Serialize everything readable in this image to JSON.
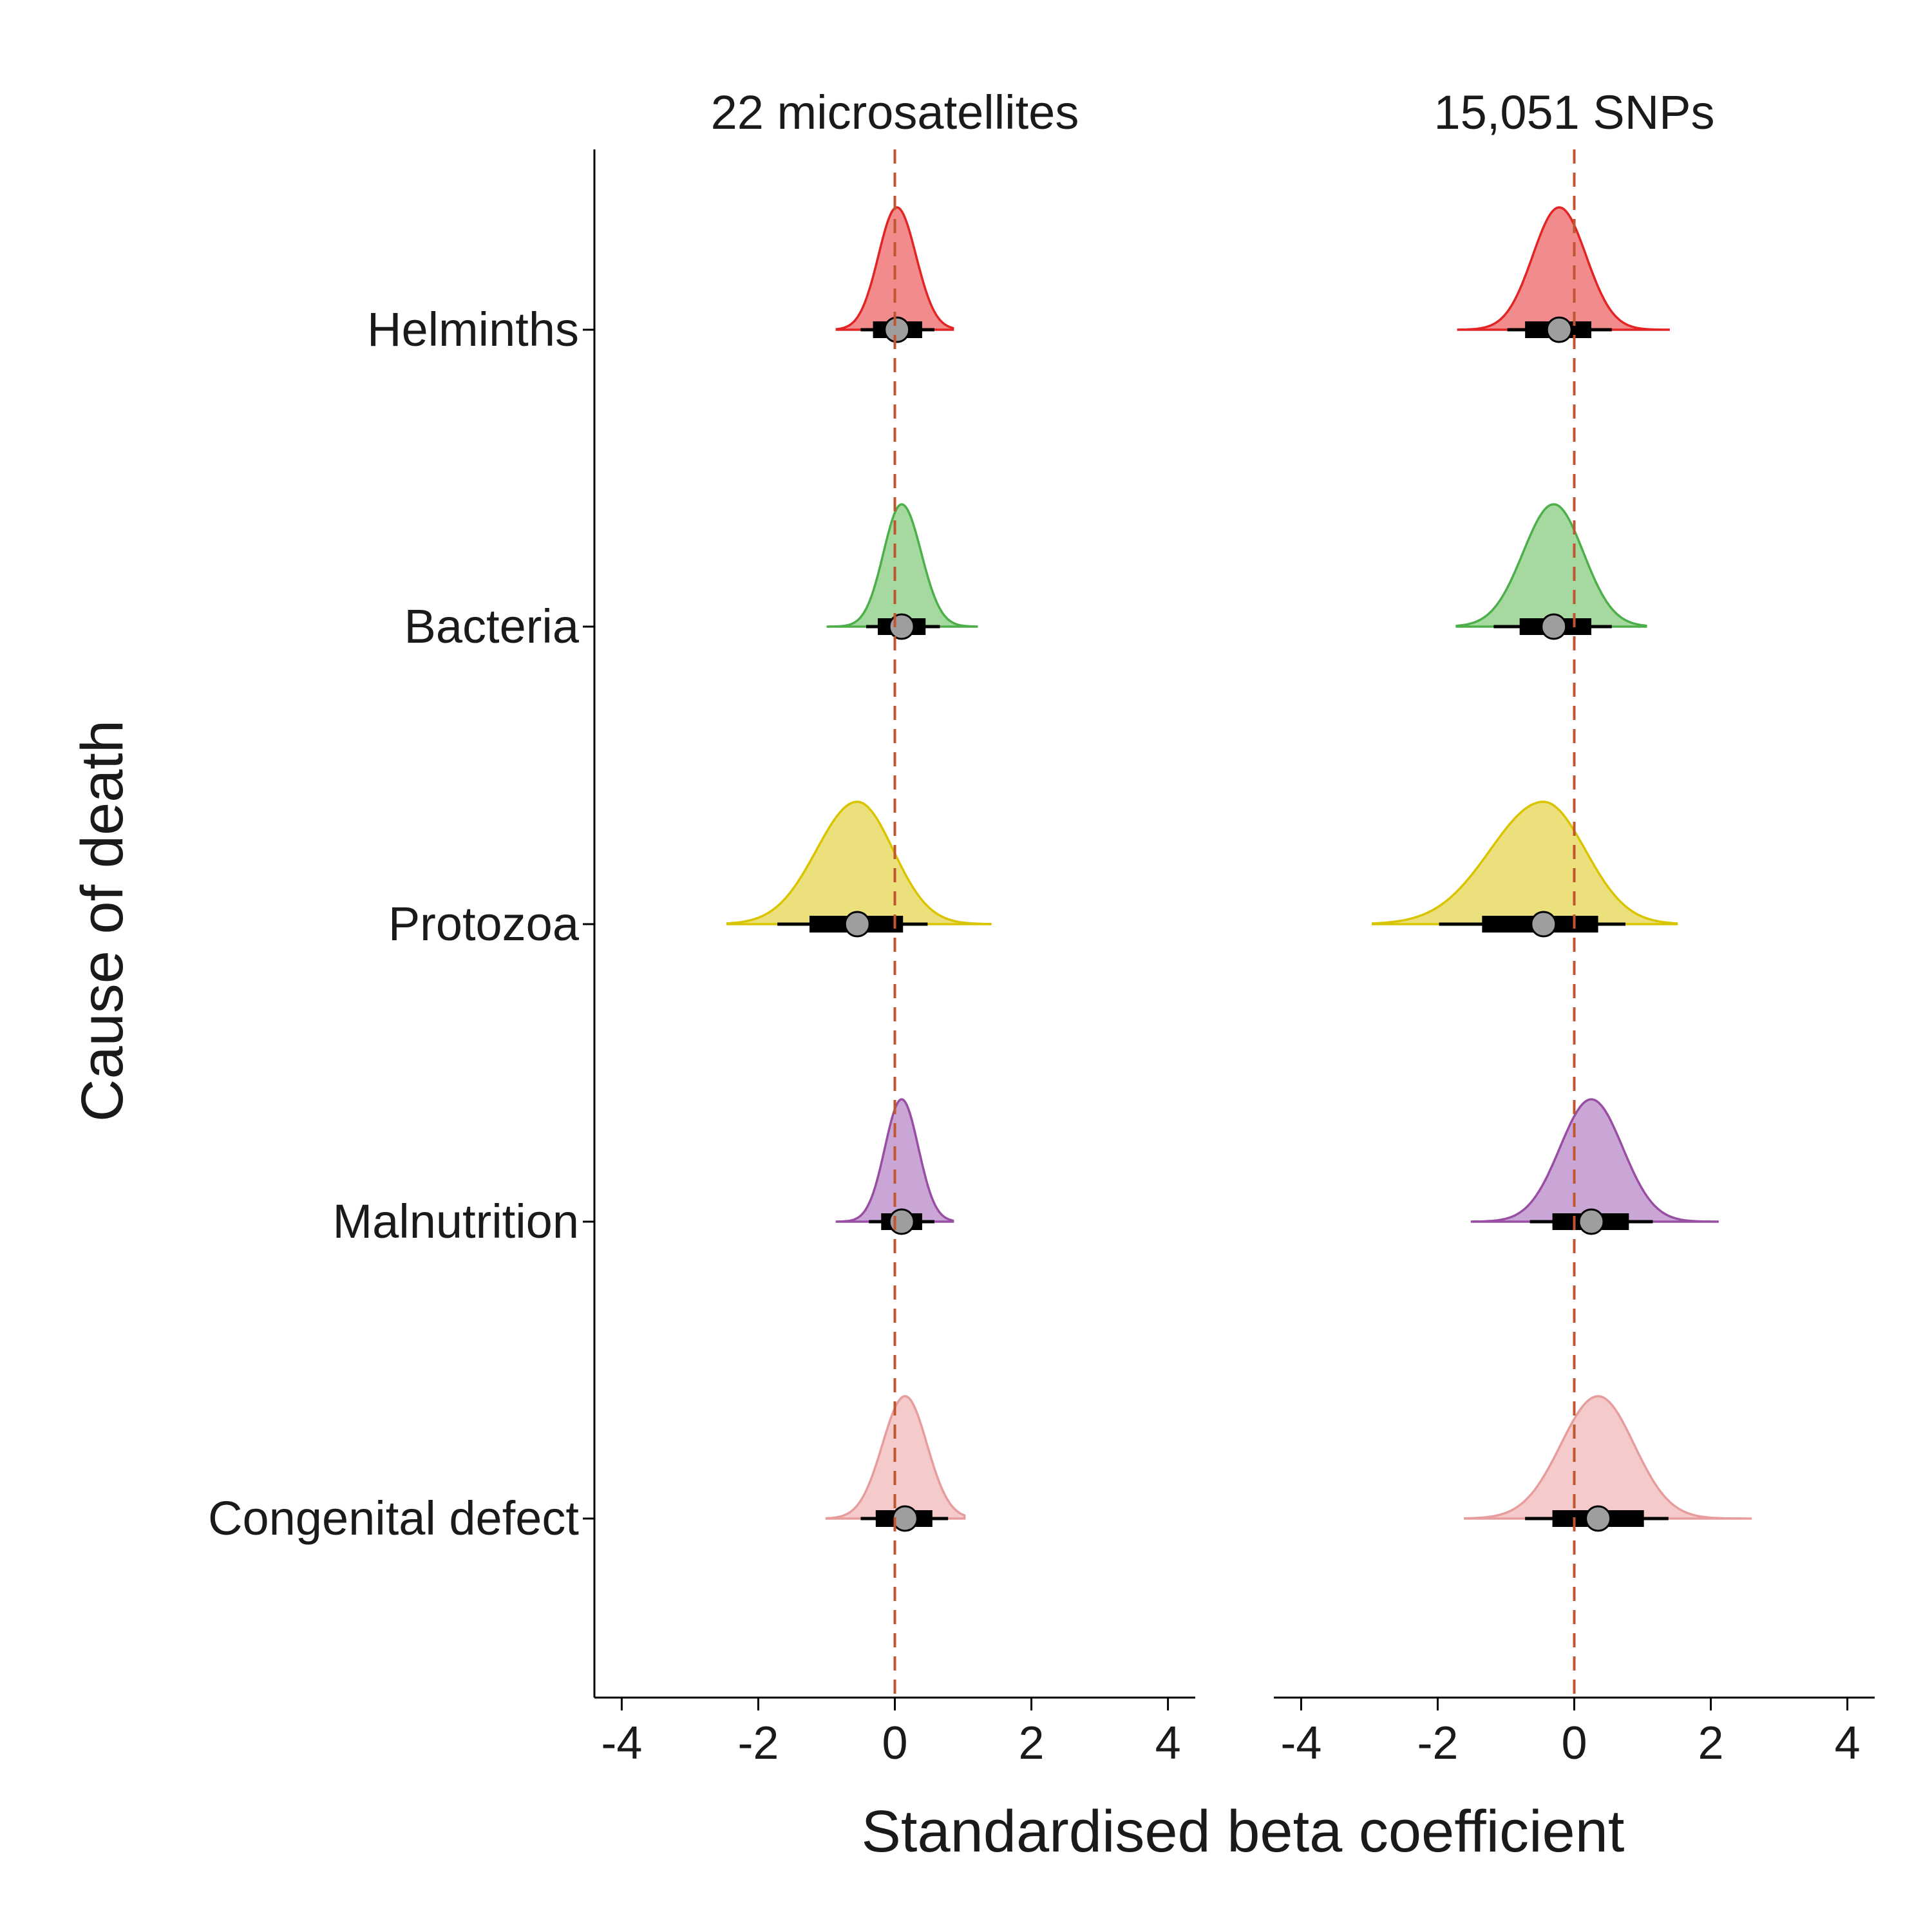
{
  "chart_data": {
    "type": "halfeye",
    "xlabel": "Standardised beta coefficient",
    "ylabel": "Cause of death",
    "xlim": [
      -4.4,
      4.4
    ],
    "xticks": [
      -4,
      -2,
      0,
      2,
      4
    ],
    "xtick_labels": [
      "-4",
      "-2",
      "0",
      "2",
      "4"
    ],
    "reference_line": 0,
    "categories": [
      "Helminths",
      "Bacteria",
      "Protozoa",
      "Malnutrition",
      "Congenital defect"
    ],
    "colors": {
      "Helminths": {
        "fill": "#f28b8b",
        "line": "#e32424"
      },
      "Bacteria": {
        "fill": "#a6d9a0",
        "line": "#4daf4a"
      },
      "Protozoa": {
        "fill": "#ece07c",
        "line": "#d9c400"
      },
      "Malnutrition": {
        "fill": "#caa6d6",
        "line": "#984ea3"
      },
      "Congenital defect": {
        "fill": "#f4caca",
        "line": "#e79d9d"
      }
    },
    "reference_line_color": "#c0562e",
    "point_color": "#9e9e9e",
    "panels": [
      {
        "title": "22 microsatellites",
        "series": [
          {
            "category": "Helminths",
            "median": 0.03,
            "ci66": [
              -0.32,
              0.4
            ],
            "ci95": [
              -0.5,
              0.58
            ],
            "range": [
              -0.85,
              0.85
            ]
          },
          {
            "category": "Bacteria",
            "median": 0.1,
            "ci66": [
              -0.25,
              0.45
            ],
            "ci95": [
              -0.42,
              0.66
            ],
            "range": [
              -1.0,
              1.2
            ]
          },
          {
            "category": "Protozoa",
            "median": -0.55,
            "ci66": [
              -1.25,
              0.12
            ],
            "ci95": [
              -1.72,
              0.48
            ],
            "range": [
              -2.45,
              1.4
            ]
          },
          {
            "category": "Malnutrition",
            "median": 0.1,
            "ci66": [
              -0.2,
              0.4
            ],
            "ci95": [
              -0.38,
              0.58
            ],
            "range": [
              -0.85,
              0.85
            ]
          },
          {
            "category": "Congenital defect",
            "median": 0.15,
            "ci66": [
              -0.28,
              0.55
            ],
            "ci95": [
              -0.5,
              0.78
            ],
            "range": [
              -1.0,
              1.02
            ]
          }
        ]
      },
      {
        "title": "15,051 SNPs",
        "series": [
          {
            "category": "Helminths",
            "median": -0.22,
            "ci66": [
              -0.72,
              0.25
            ],
            "ci95": [
              -0.98,
              0.55
            ],
            "range": [
              -1.7,
              1.4
            ]
          },
          {
            "category": "Bacteria",
            "median": -0.3,
            "ci66": [
              -0.8,
              0.25
            ],
            "ci95": [
              -1.18,
              0.55
            ],
            "range": [
              -1.72,
              1.05
            ]
          },
          {
            "category": "Protozoa",
            "median": -0.45,
            "ci66": [
              -1.35,
              0.35
            ],
            "ci95": [
              -1.98,
              0.75
            ],
            "range": [
              -2.95,
              1.5
            ]
          },
          {
            "category": "Malnutrition",
            "median": 0.25,
            "ci66": [
              -0.32,
              0.8
            ],
            "ci95": [
              -0.65,
              1.15
            ],
            "range": [
              -1.5,
              2.1
            ]
          },
          {
            "category": "Congenital defect",
            "median": 0.35,
            "ci66": [
              -0.32,
              1.02
            ],
            "ci95": [
              -0.72,
              1.38
            ],
            "range": [
              -1.6,
              2.6
            ]
          }
        ]
      }
    ]
  }
}
